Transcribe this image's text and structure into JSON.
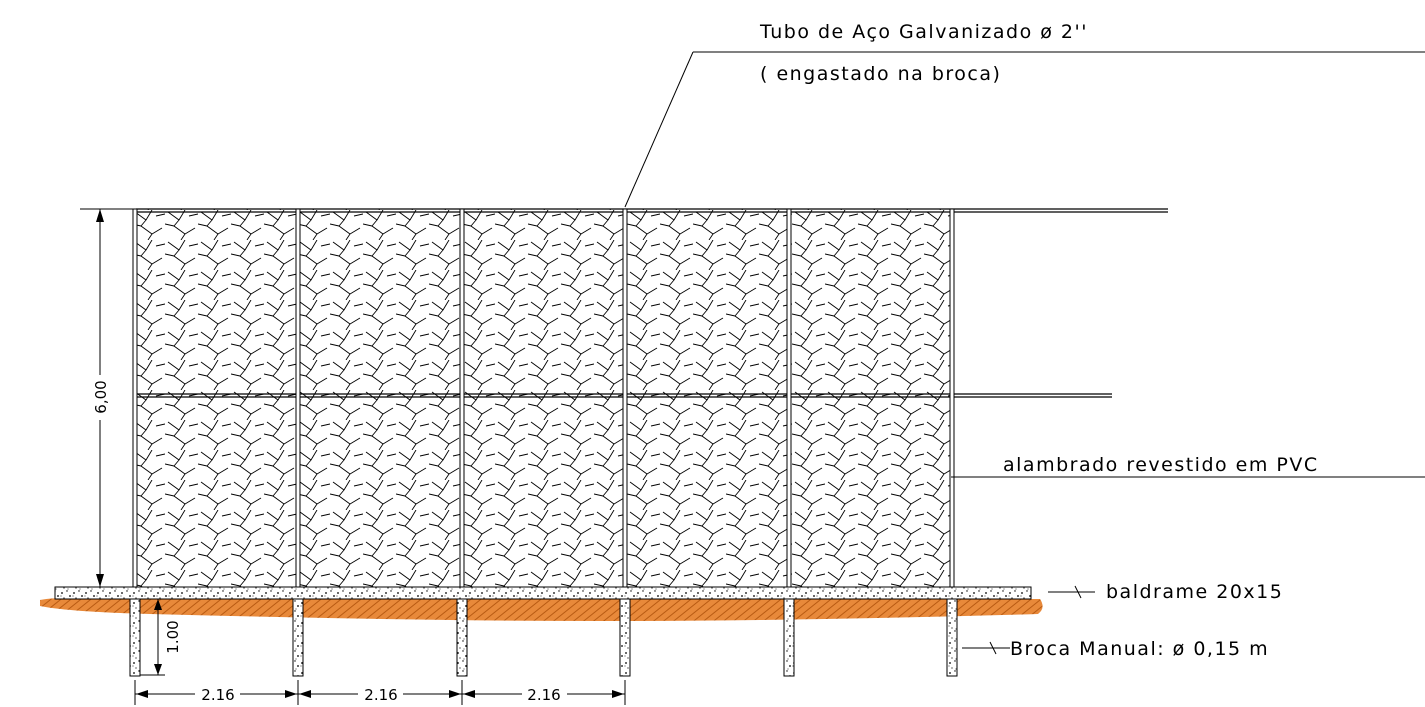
{
  "callouts": {
    "pipe_line1": "Tubo de Aço Galvanizado ø 2''",
    "pipe_line2": "( engastado na broca)",
    "mesh": "alambrado revestido em PVC",
    "beam": "baldrame 20x15",
    "pile": "Broca Manual: ø 0,15 m"
  },
  "dimensions": {
    "height": "6,00",
    "pile_depth": "1.00",
    "spacing_1": "2.16",
    "spacing_2": "2.16",
    "spacing_3": "2.16"
  },
  "colors": {
    "line": "#000000",
    "soil": "#e8893a",
    "concrete": "#d9d9d9"
  }
}
